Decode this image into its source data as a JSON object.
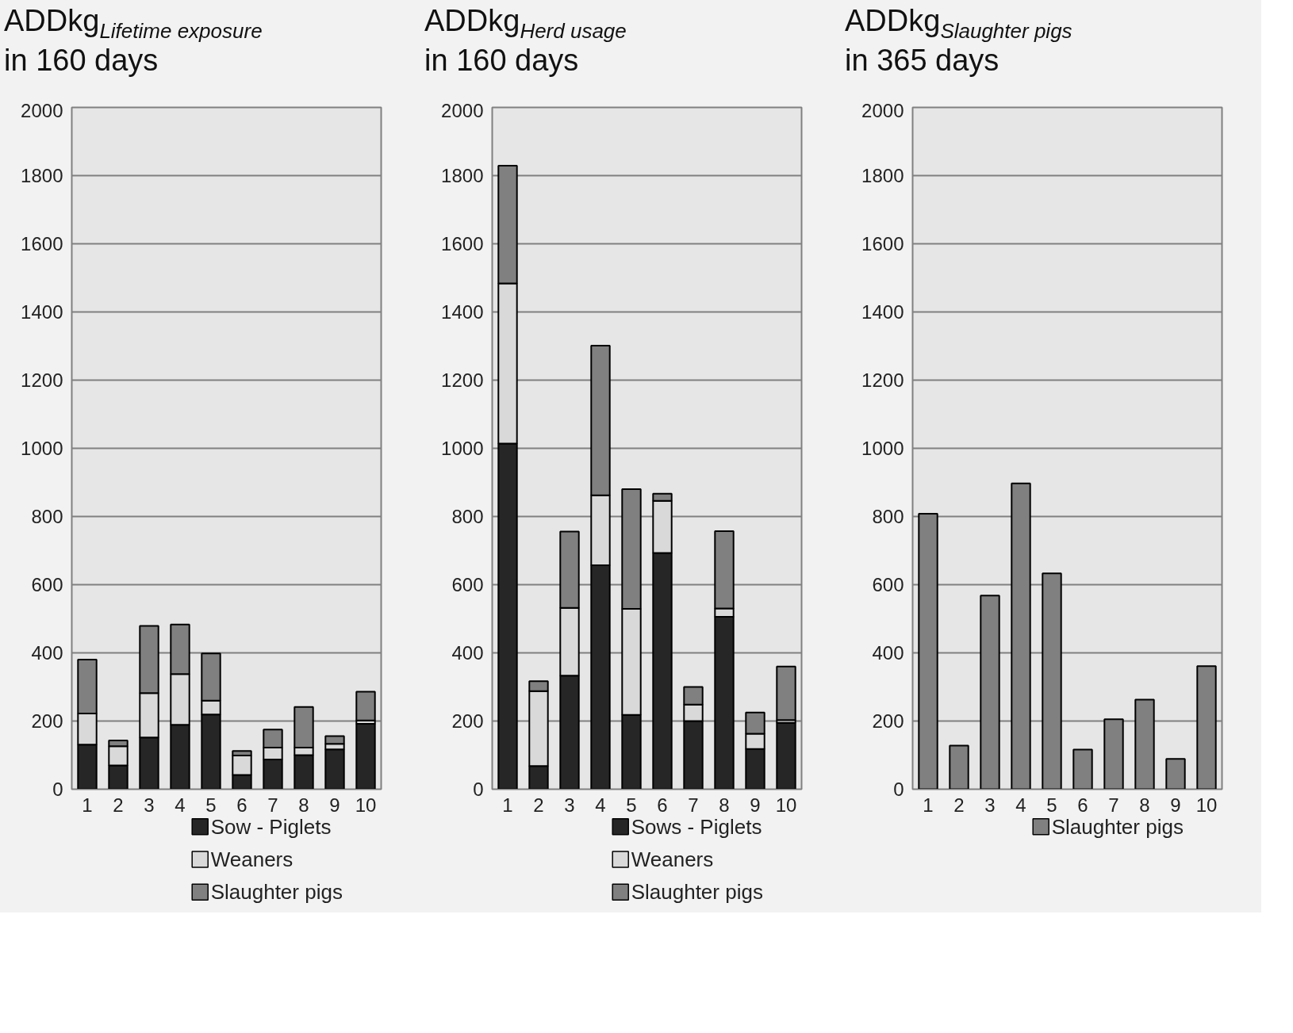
{
  "chart_data": [
    {
      "type": "bar",
      "title": "ADDkg$_{Lifetime exposure}$",
      "subtitle": "in 160 days",
      "categories": [
        "1",
        "2",
        "3",
        "4",
        "5",
        "6",
        "7",
        "8",
        "9",
        "10"
      ],
      "stacked": true,
      "series": [
        {
          "name": "Sow - Piglets",
          "color": "#262626",
          "values": [
            131,
            70,
            152,
            189,
            219,
            42,
            87,
            100,
            117,
            192
          ]
        },
        {
          "name": "Weaners",
          "color": "#d9d9d9",
          "values": [
            91,
            56,
            130,
            149,
            41,
            57,
            35,
            22,
            16,
            10
          ]
        },
        {
          "name": "Slaughter pigs",
          "color": "#808080",
          "values": [
            158,
            17,
            197,
            145,
            138,
            13,
            53,
            119,
            23,
            84
          ]
        }
      ],
      "ylim": [
        0,
        2000
      ],
      "yticks": [
        0,
        200,
        400,
        600,
        800,
        1000,
        1200,
        1400,
        1600,
        1800,
        2000
      ],
      "grid": "y",
      "legend": "bottom"
    },
    {
      "type": "bar",
      "title": "ADDkg$_{Herd usage}$",
      "subtitle": "in 160 days",
      "categories": [
        "1",
        "2",
        "3",
        "4",
        "5",
        "6",
        "7",
        "8",
        "9",
        "10"
      ],
      "stacked": true,
      "series": [
        {
          "name": "Sows - Piglets",
          "color": "#262626",
          "values": [
            1014,
            68,
            333,
            657,
            218,
            693,
            200,
            506,
            118,
            195
          ]
        },
        {
          "name": "Weaners",
          "color": "#d9d9d9",
          "values": [
            470,
            220,
            199,
            205,
            311,
            153,
            48,
            24,
            45,
            8
          ]
        },
        {
          "name": "Slaughter pigs",
          "color": "#808080",
          "values": [
            345,
            29,
            224,
            439,
            351,
            21,
            52,
            227,
            62,
            157
          ]
        }
      ],
      "ylim": [
        0,
        2000
      ],
      "yticks": [
        0,
        200,
        400,
        600,
        800,
        1000,
        1200,
        1400,
        1600,
        1800,
        2000
      ],
      "grid": "y",
      "legend": "bottom"
    },
    {
      "type": "bar",
      "title": "ADDkg$_{Slaughter pigs}$",
      "subtitle": "in 365 days",
      "categories": [
        "1",
        "2",
        "3",
        "4",
        "5",
        "6",
        "7",
        "8",
        "9",
        "10"
      ],
      "series": [
        {
          "name": "Slaughter pigs",
          "color": "#808080",
          "values": [
            808,
            128,
            568,
            897,
            633,
            116,
            205,
            263,
            89,
            361
          ]
        }
      ],
      "ylim": [
        0,
        2000
      ],
      "yticks": [
        0,
        200,
        400,
        600,
        800,
        1000,
        1200,
        1400,
        1600,
        1800,
        2000
      ],
      "grid": "y",
      "legend": "bottom"
    }
  ]
}
